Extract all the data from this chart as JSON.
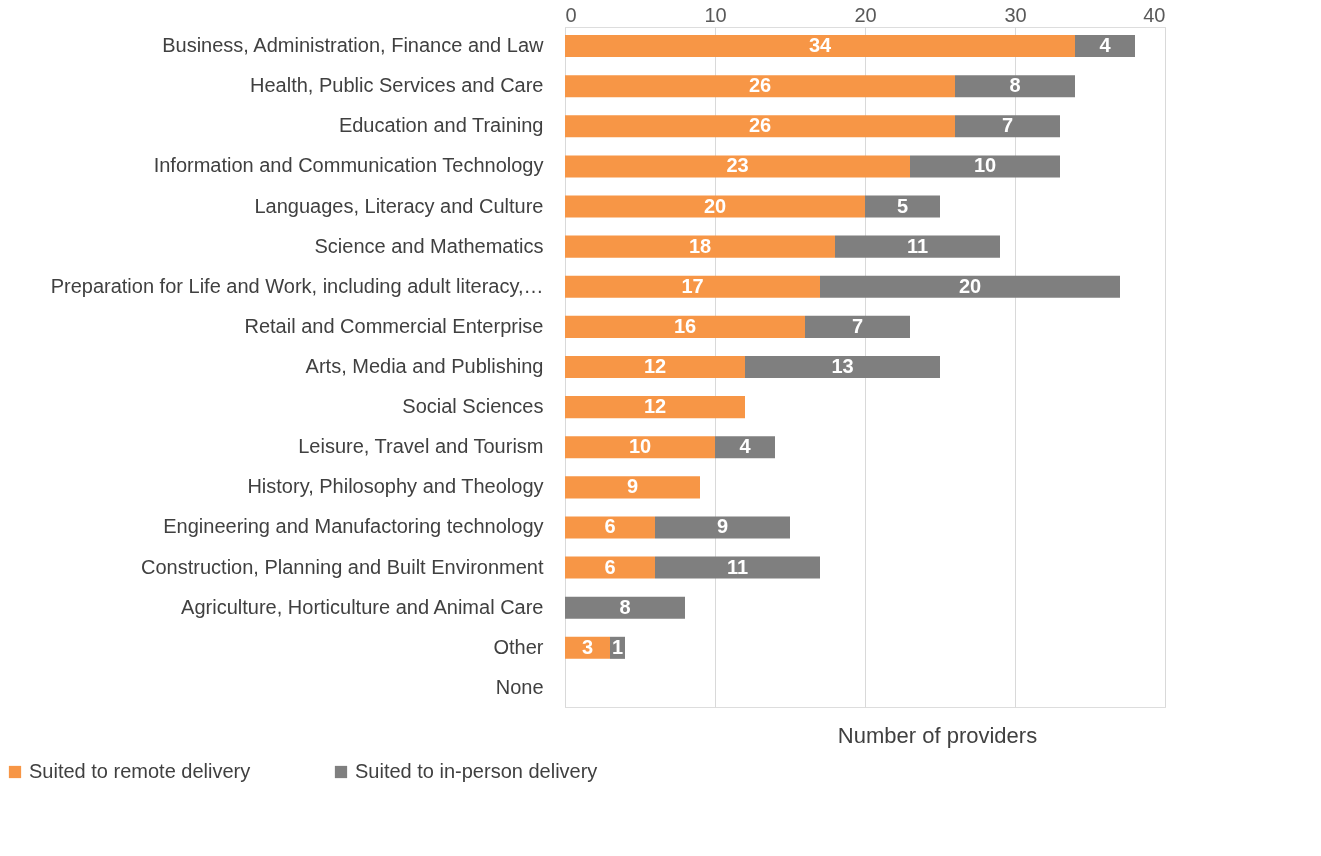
{
  "chart_data": {
    "type": "bar",
    "orientation": "horizontal",
    "stacked": true,
    "xlabel": "Number of providers",
    "categories": [
      "Business, Administration, Finance and Law",
      "Health, Public Services and Care",
      "Education and Training",
      "Information and Communication Technology",
      "Languages, Literacy and Culture",
      "Science and Mathematics",
      "Preparation for Life and Work, including adult literacy,…",
      "Retail and Commercial Enterprise",
      "Arts, Media and Publishing",
      "Social Sciences",
      "Leisure, Travel and Tourism",
      "History, Philosophy and Theology",
      "Engineering and Manufactoring technology",
      "Construction, Planning and Built Environment",
      "Agriculture, Horticulture and Animal Care",
      "Other",
      "None"
    ],
    "series": [
      {
        "name": "Suited to remote delivery",
        "color": "#f79646",
        "values": [
          34,
          26,
          26,
          23,
          20,
          18,
          17,
          16,
          12,
          12,
          10,
          9,
          6,
          6,
          null,
          3,
          null
        ]
      },
      {
        "name": "Suited to in-person delivery",
        "color": "#7f7f7f",
        "values": [
          4,
          8,
          7,
          10,
          5,
          11,
          20,
          7,
          13,
          null,
          4,
          null,
          9,
          11,
          8,
          1,
          null
        ]
      }
    ],
    "xlim": [
      0,
      40
    ],
    "xticks": [
      0,
      10,
      20,
      30,
      40
    ],
    "grid": "x",
    "legend": "bottom left",
    "data_labels": true
  }
}
